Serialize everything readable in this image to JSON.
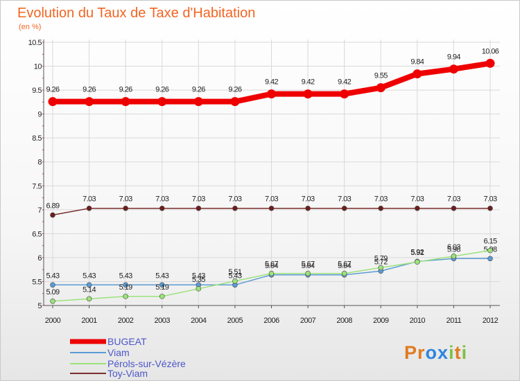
{
  "chart_data": {
    "type": "line",
    "title": "Evolution du Taux de Taxe d'Habitation",
    "subtitle": "(en %)",
    "xlabel": "",
    "ylabel": "",
    "x": [
      "2000",
      "2001",
      "2002",
      "2003",
      "2004",
      "2005",
      "2006",
      "2007",
      "2008",
      "2009",
      "2010",
      "2011",
      "2012"
    ],
    "ylim": [
      5,
      10.5
    ],
    "yticks": [
      "5",
      "5.5",
      "6",
      "6.5",
      "7",
      "7.5",
      "8",
      "8.5",
      "9",
      "9.5",
      "10",
      "10.5"
    ],
    "grid": true,
    "legend_position": "bottom-left",
    "series": [
      {
        "name": "BUGEAT",
        "color": "#ee0000",
        "values": [
          9.26,
          9.26,
          9.26,
          9.26,
          9.26,
          9.26,
          9.42,
          9.42,
          9.42,
          9.55,
          9.84,
          9.94,
          10.06
        ],
        "labels": [
          "9.26",
          "9.26",
          "9.26",
          "9.26",
          "9.26",
          "9.26",
          "9.42",
          "9.42",
          "9.42",
          "9.55",
          "9.84",
          "9.94",
          "10.06"
        ]
      },
      {
        "name": "Viam",
        "color": "#5b9bd5",
        "values": [
          5.43,
          5.43,
          5.43,
          5.43,
          5.43,
          5.43,
          5.64,
          5.64,
          5.64,
          5.72,
          5.92,
          5.98,
          5.98
        ],
        "labels": [
          "5.43",
          "5.43",
          "5.43",
          "5.43",
          "5.43",
          "5.43",
          "5.64",
          "5.64",
          "5.64",
          "5.72",
          "5.92",
          "5.98",
          "5.98"
        ]
      },
      {
        "name": "Pérols-sur-Vézère",
        "color": "#9be27a",
        "values": [
          5.09,
          5.14,
          5.19,
          5.19,
          5.35,
          5.51,
          5.67,
          5.67,
          5.67,
          5.79,
          5.91,
          6.03,
          6.15
        ],
        "labels": [
          "5.09",
          "5.14",
          "5.19",
          "5.19",
          "5.35",
          "5.51",
          "5.67",
          "5.67",
          "5.67",
          "5.79",
          "5.91",
          "6.03",
          "6.15"
        ]
      },
      {
        "name": "Toy-Viam",
        "color": "#7b2d2d",
        "values": [
          6.89,
          7.03,
          7.03,
          7.03,
          7.03,
          7.03,
          7.03,
          7.03,
          7.03,
          7.03,
          7.03,
          7.03,
          7.03
        ],
        "labels": [
          "6.89",
          "7.03",
          "7.03",
          "7.03",
          "7.03",
          "7.03",
          "7.03",
          "7.03",
          "7.03",
          "7.03",
          "7.03",
          "7.03",
          "7.03"
        ]
      }
    ]
  },
  "branding": {
    "logo_letters": [
      "P",
      "r",
      "o",
      "x",
      "i",
      "t",
      "i"
    ],
    "logo_colors": [
      "#e07b1f",
      "#e07b1f",
      "#2e86de",
      "#2e86de",
      "#7cc242",
      "#e07b1f",
      "#7cc242"
    ]
  }
}
